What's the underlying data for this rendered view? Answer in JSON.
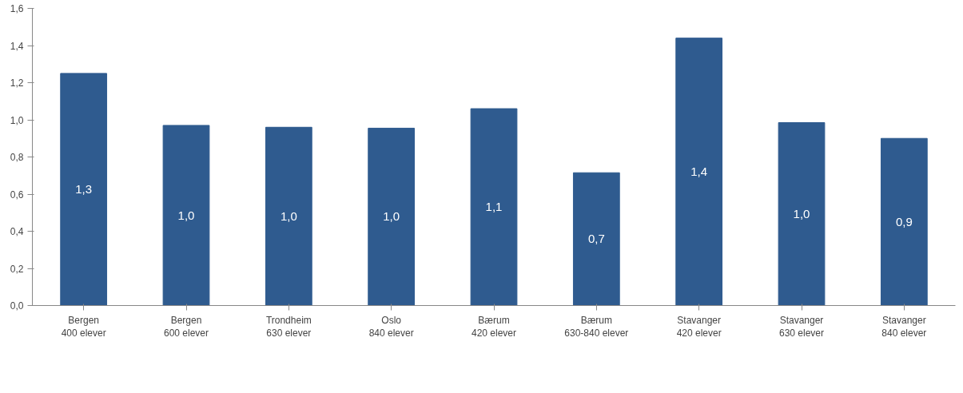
{
  "chart_data": {
    "type": "bar",
    "categories": [
      "Bergen\n400 elever",
      "Bergen\n600 elever",
      "Trondheim\n630 elever",
      "Oslo\n840 elever",
      "Bærum\n420 elever",
      "Bærum\n630-840 elever",
      "Stavanger\n420 elever",
      "Stavanger\n630 elever",
      "Stavanger\n840 elever"
    ],
    "values": [
      1.25,
      0.97,
      0.96,
      0.955,
      1.06,
      0.715,
      1.44,
      0.985,
      0.9
    ],
    "value_labels": [
      "1,3",
      "1,0",
      "1,0",
      "1,0",
      "1,1",
      "0,7",
      "1,4",
      "1,0",
      "0,9"
    ],
    "color": "#2f5b8f",
    "ylim": [
      0,
      1.6
    ],
    "yticks": [
      {
        "value": 0,
        "label": "0,0"
      },
      {
        "value": 0.2,
        "label": "0,2"
      },
      {
        "value": 0.4,
        "label": "0,4"
      },
      {
        "value": 0.6,
        "label": "0,6"
      },
      {
        "value": 0.8,
        "label": "0,8"
      },
      {
        "value": 1.0,
        "label": "1,0"
      },
      {
        "value": 1.2,
        "label": "1,2"
      },
      {
        "value": 1.4,
        "label": "1,4"
      },
      {
        "value": 1.6,
        "label": "1,6"
      }
    ],
    "grid": false
  }
}
